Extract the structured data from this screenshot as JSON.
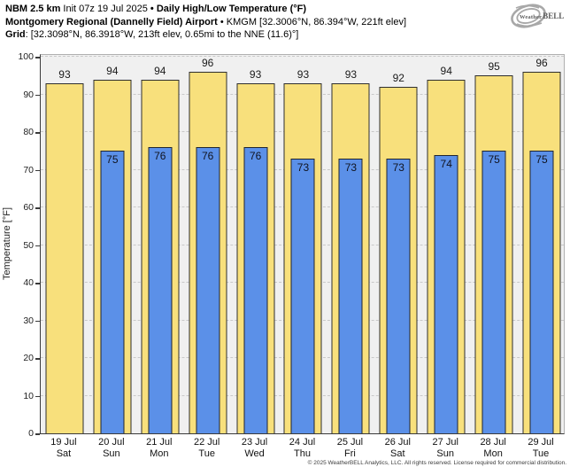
{
  "header": {
    "model": "NBM 2.5 km",
    "init": "Init 07z 19 Jul 2025",
    "separator": "•",
    "product": "Daily High/Low Temperature (°F)",
    "station": "Montgomery Regional (Dannelly Field) Airport",
    "station_meta": "KMGM [32.3006°N, 86.394°W, 221ft elev]",
    "grid_label": "Grid",
    "grid_value": ": [32.3098°N, 86.3918°W, 213ft elev, 0.65mi to the NNE (11.6)°]"
  },
  "logo": {
    "brand_weather": "Weather",
    "brand_bell": "BELL"
  },
  "footer": {
    "copyright": "© 2025 WeatherBELL Analytics, LLC. All rights reserved. License required for commercial distribution."
  },
  "chart_data": {
    "type": "bar",
    "title": "Daily High/Low Temperature (°F)",
    "ylabel": "Temperature [°F]",
    "ylim": [
      0,
      100
    ],
    "ytick_step": 10,
    "grid": "horizontal-dashed",
    "legend": "none",
    "categories": [
      {
        "date": "19 Jul",
        "day": "Sat"
      },
      {
        "date": "20 Jul",
        "day": "Sun"
      },
      {
        "date": "21 Jul",
        "day": "Mon"
      },
      {
        "date": "22 Jul",
        "day": "Tue"
      },
      {
        "date": "23 Jul",
        "day": "Wed"
      },
      {
        "date": "24 Jul",
        "day": "Thu"
      },
      {
        "date": "25 Jul",
        "day": "Fri"
      },
      {
        "date": "26 Jul",
        "day": "Sat"
      },
      {
        "date": "27 Jul",
        "day": "Sun"
      },
      {
        "date": "28 Jul",
        "day": "Mon"
      },
      {
        "date": "29 Jul",
        "day": "Tue"
      }
    ],
    "series": [
      {
        "name": "High",
        "color": "#f8e07c",
        "values": [
          93,
          94,
          94,
          96,
          93,
          93,
          93,
          92,
          94,
          95,
          96
        ]
      },
      {
        "name": "Low",
        "color": "#5b90e8",
        "values": [
          null,
          75,
          76,
          76,
          76,
          73,
          73,
          73,
          74,
          75,
          75
        ]
      }
    ],
    "plot_background": "#f0f0f0"
  }
}
